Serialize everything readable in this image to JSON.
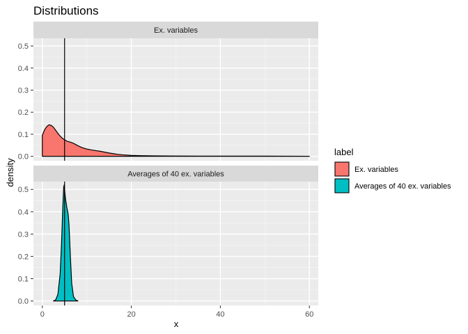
{
  "chart_data": {
    "type": "area",
    "title": "Distributions",
    "xlabel": "x",
    "ylabel": "density",
    "xlim": [
      -2,
      62
    ],
    "ylim": [
      -0.02,
      0.535
    ],
    "x_ticks": [
      0,
      20,
      40,
      60
    ],
    "y_ticks": [
      0.0,
      0.1,
      0.2,
      0.3,
      0.4,
      0.5
    ],
    "y_tick_labels": [
      "0.0",
      "0.1",
      "0.2",
      "0.3",
      "0.4",
      "0.5"
    ],
    "vline_x": 5,
    "grid": true,
    "legend_position": "right",
    "legend_title": "label",
    "panels": [
      {
        "strip": "Ex. variables",
        "name": "Ex. variables",
        "color": "#F8766D",
        "points": [
          [
            0,
            0.095
          ],
          [
            0.5,
            0.12
          ],
          [
            1,
            0.135
          ],
          [
            1.5,
            0.143
          ],
          [
            2,
            0.14
          ],
          [
            2.5,
            0.132
          ],
          [
            3,
            0.118
          ],
          [
            3.5,
            0.104
          ],
          [
            4,
            0.092
          ],
          [
            4.5,
            0.082
          ],
          [
            5,
            0.075
          ],
          [
            5.5,
            0.069
          ],
          [
            6,
            0.066
          ],
          [
            6.5,
            0.063
          ],
          [
            7,
            0.059
          ],
          [
            8,
            0.048
          ],
          [
            9,
            0.039
          ],
          [
            10,
            0.033
          ],
          [
            11,
            0.029
          ],
          [
            12,
            0.026
          ],
          [
            13,
            0.023
          ],
          [
            14,
            0.019
          ],
          [
            15,
            0.015
          ],
          [
            16,
            0.012
          ],
          [
            17,
            0.009
          ],
          [
            18,
            0.007
          ],
          [
            20,
            0.004
          ],
          [
            22,
            0.003
          ],
          [
            25,
            0.002
          ],
          [
            30,
            0.0015
          ],
          [
            35,
            0.001
          ],
          [
            40,
            0.001
          ],
          [
            45,
            0.001
          ],
          [
            50,
            0.0008
          ],
          [
            55,
            0.0005
          ],
          [
            60,
            0.0003
          ]
        ]
      },
      {
        "strip": "Averages of 40 ex. variables",
        "name": "Averages of 40 ex. variables",
        "color": "#00BFC4",
        "points": [
          [
            2.5,
            0
          ],
          [
            3,
            0.005
          ],
          [
            3.5,
            0.03
          ],
          [
            4,
            0.12
          ],
          [
            4.3,
            0.25
          ],
          [
            4.6,
            0.42
          ],
          [
            4.8,
            0.51
          ],
          [
            4.9,
            0.52
          ],
          [
            5,
            0.5
          ],
          [
            5.2,
            0.46
          ],
          [
            5.5,
            0.42
          ],
          [
            5.8,
            0.39
          ],
          [
            6,
            0.34
          ],
          [
            6.3,
            0.2
          ],
          [
            6.6,
            0.08
          ],
          [
            7,
            0.02
          ],
          [
            7.5,
            0.005
          ],
          [
            8,
            0
          ]
        ]
      }
    ]
  }
}
